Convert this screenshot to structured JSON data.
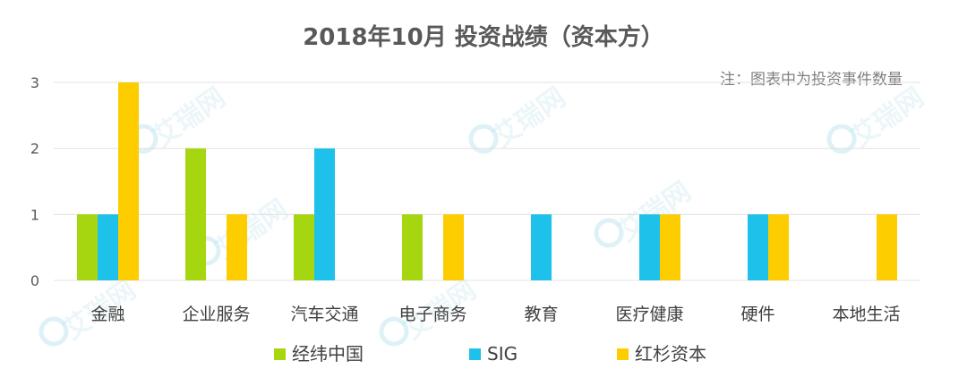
{
  "chart_data": {
    "type": "bar",
    "title": "2018年10月 投资战绩（资本方）",
    "note": "注：图表中为投资事件数量",
    "categories": [
      "金融",
      "企业服务",
      "汽车交通",
      "电子商务",
      "教育",
      "医疗健康",
      "硬件",
      "本地生活"
    ],
    "series": [
      {
        "name": "经纬中国",
        "color": "#a6d610",
        "values": [
          1,
          2,
          1,
          1,
          0,
          0,
          0,
          0
        ]
      },
      {
        "name": "SIG",
        "color": "#1ec1ea",
        "values": [
          1,
          0,
          2,
          0,
          1,
          1,
          1,
          0
        ]
      },
      {
        "name": "红杉资本",
        "color": "#fdcd00",
        "values": [
          3,
          1,
          0,
          1,
          0,
          1,
          1,
          1
        ]
      }
    ],
    "ylim": [
      0,
      3
    ],
    "yticks": [
      0,
      1,
      2,
      3
    ],
    "grid": true,
    "legend_position": "bottom",
    "watermark": "艾瑞网"
  }
}
